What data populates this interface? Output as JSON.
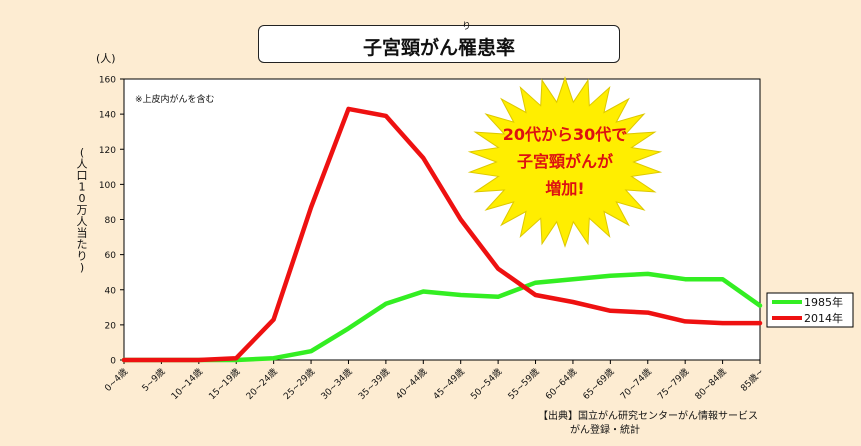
{
  "title": "子宮頸がん罹患率",
  "title_ruby": "り",
  "chart_data": {
    "type": "line",
    "unit_label": "(人)",
    "ylabel": "(人口10万人当たり)",
    "note": "※上皮内がんを含む",
    "ylim": [
      0,
      160
    ],
    "y_ticks": [
      0,
      20,
      40,
      60,
      80,
      100,
      120,
      140,
      160
    ],
    "categories": [
      "0~4歳",
      "5~9歳",
      "10~14歳",
      "15~19歳",
      "20~24歳",
      "25~29歳",
      "30~34歳",
      "35~39歳",
      "40~44歳",
      "45~49歳",
      "50~54歳",
      "55~59歳",
      "60~64歳",
      "65~69歳",
      "70~74歳",
      "75~79歳",
      "80~84歳",
      "85歳~"
    ],
    "series": [
      {
        "name": "1985年",
        "color": "#33ee22",
        "values": [
          0,
          0,
          0,
          0,
          1,
          5,
          18,
          32,
          39,
          37,
          36,
          44,
          46,
          48,
          49,
          46,
          46,
          31
        ]
      },
      {
        "name": "2014年",
        "color": "#ee1111",
        "values": [
          0,
          0,
          0,
          1,
          23,
          87,
          143,
          139,
          115,
          80,
          52,
          37,
          33,
          28,
          27,
          22,
          21,
          21
        ]
      }
    ],
    "grid": false,
    "legend_position": "right",
    "callout": {
      "lines": [
        "20代から30代で",
        "子宮頸がんが",
        "増加!"
      ],
      "fill": "#ffee00",
      "text_color": "#dd1111"
    },
    "source": [
      "【出典】国立がん研究センターがん情報サービス",
      "がん登録・統計"
    ]
  }
}
